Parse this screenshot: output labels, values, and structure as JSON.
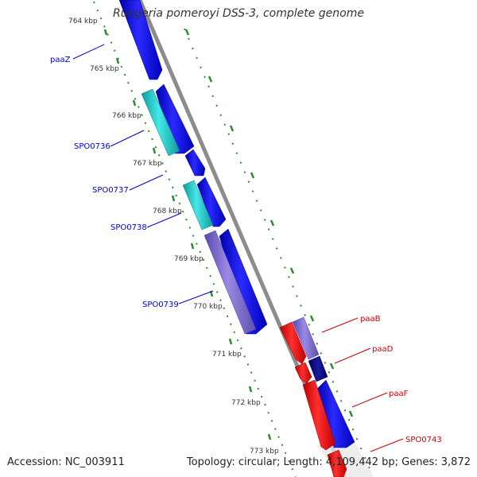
{
  "header": {
    "title": "Ruegeria pomeroyi DSS-3, complete genome"
  },
  "footer": {
    "accession": "Accession: NC_003911",
    "summary": "Topology: circular; Length: 4,109,442 bp; Genes: 3,872"
  },
  "ticks": [
    "764 kbp",
    "765 kbp",
    "766 kbp",
    "767 kbp",
    "768 kbp",
    "769 kbp",
    "770 kbp",
    "771 kbp",
    "772 kbp",
    "773 kbp"
  ],
  "genes_left": [
    "paaZ",
    "SPO0736",
    "SPO0737",
    "SPO0738",
    "SPO0739"
  ],
  "genes_right": [
    "paaB",
    "paaD",
    "paaF",
    "SPO0743"
  ],
  "colors": {
    "forward_strand": "#0000ee",
    "reverse_strand": "#ee0000",
    "cyan_feature": "#22cccc",
    "purple_feature": "#7b68cc",
    "navy_feature": "#000088",
    "backbone": "#888888",
    "tick_dots": "#2e8b2e",
    "label_blue": "#0000cc",
    "label_red": "#cc0000"
  }
}
